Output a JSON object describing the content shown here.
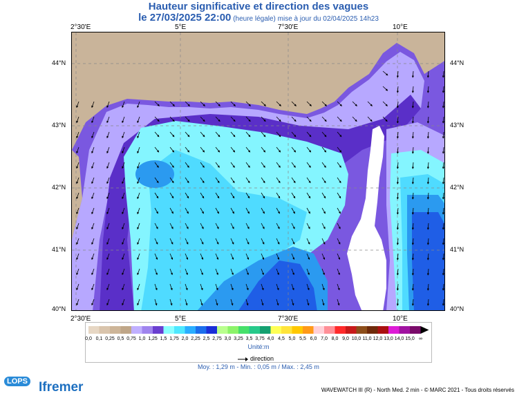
{
  "title": {
    "line1": "Hauteur significative et direction des vagues",
    "datetime": "le 27/03/2025 22:00",
    "note": "(heure légale) mise à jour du 02/04/2025 14h23"
  },
  "axes": {
    "lon_labels": [
      "2°30'E",
      "5°E",
      "7°30'E",
      "10°E"
    ],
    "lat_labels": [
      "44°N",
      "43°N",
      "42°N",
      "41°N",
      "40°N"
    ]
  },
  "legend": {
    "values": [
      "0,0",
      "0,1",
      "0,25",
      "0,5",
      "0,75",
      "1,0",
      "1,25",
      "1,5",
      "1,75",
      "2,0",
      "2,25",
      "2,5",
      "2,75",
      "3,0",
      "3,25",
      "3,5",
      "3,75",
      "4,0",
      "4,5",
      "5,0",
      "5,5",
      "6,0",
      "7,0",
      "8,0",
      "9,0",
      "10,0",
      "11,0",
      "12,0",
      "13,0",
      "14,0",
      "15,0",
      "∞"
    ],
    "colors": [
      "#e7d7c4",
      "#d9c4ac",
      "#cdb598",
      "#bfa688",
      "#c0b0ff",
      "#9f84ee",
      "#6a3fd0",
      "#8affff",
      "#4ee8ff",
      "#2aaeff",
      "#1c6eec",
      "#1b2fd8",
      "#b9ff8e",
      "#8cf36a",
      "#46e06a",
      "#27c98a",
      "#14a070",
      "#ffff55",
      "#ffe43a",
      "#ffc800",
      "#ff9a18",
      "#ffd0d8",
      "#ff8f97",
      "#ff2a2a",
      "#c81a1a",
      "#8d4e1a",
      "#6f2a0a",
      "#aa1010",
      "#dd1bd6",
      "#a012a0",
      "#7a0b6a"
    ],
    "unit": "Unité:m",
    "direction_label": "direction",
    "stats": "Moy. : 1,29 m  -  Min. : 0,05 m / Max. : 2,45 m"
  },
  "credit": "WAVEWATCH III (R) - North Med. 2 min - © MARC 2021 - Tous droits réservés",
  "logos": {
    "lops": "LOPS",
    "ifremer": "Ifremer"
  },
  "map_colors": {
    "land": "#c9b49a",
    "corsica": "#ffffff",
    "wave_low": "#b7a8ff",
    "wave_mid": "#7a58e0",
    "wave_dark": "#5a2fc8",
    "wave_cyan": "#84f5ff",
    "wave_light": "#4fdbff",
    "wave_blue": "#2b9af0",
    "wave_deep": "#1f5ee6",
    "wave_navy": "#1a2fc4"
  }
}
